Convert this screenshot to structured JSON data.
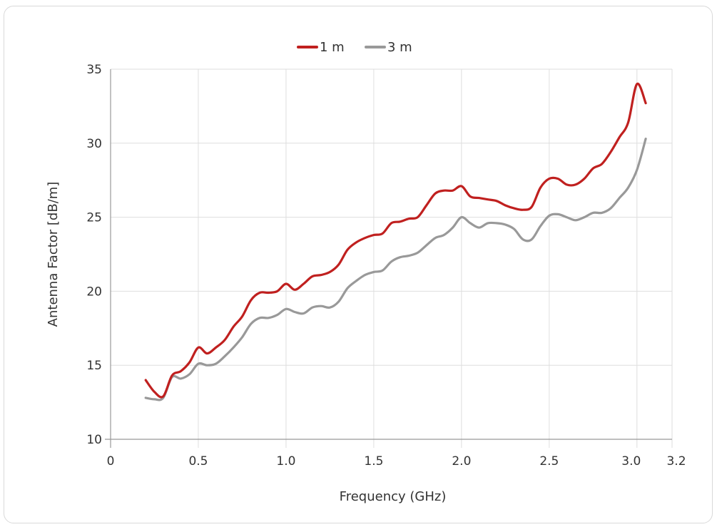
{
  "chart_data": {
    "type": "line",
    "xlabel": "Frequency (GHz)",
    "ylabel": "Antenna Factor [dB/m]",
    "xlim": [
      0,
      3.2
    ],
    "ylim": [
      10,
      35
    ],
    "x_ticks": [
      "0",
      "0.5",
      "1.0",
      "1.5",
      "2.0",
      "2.5",
      "3.0",
      "3.2"
    ],
    "y_ticks": [
      "10",
      "15",
      "20",
      "25",
      "30",
      "35"
    ],
    "grid": true,
    "legend_position": "top",
    "series": [
      {
        "name": "1 m",
        "color": "#c0201f",
        "x": [
          0.2,
          0.25,
          0.3,
          0.35,
          0.4,
          0.45,
          0.5,
          0.55,
          0.6,
          0.65,
          0.7,
          0.75,
          0.8,
          0.85,
          0.9,
          0.95,
          1.0,
          1.05,
          1.1,
          1.15,
          1.2,
          1.25,
          1.3,
          1.35,
          1.4,
          1.45,
          1.5,
          1.55,
          1.6,
          1.65,
          1.7,
          1.75,
          1.8,
          1.85,
          1.9,
          1.95,
          2.0,
          2.05,
          2.1,
          2.15,
          2.2,
          2.25,
          2.3,
          2.35,
          2.4,
          2.45,
          2.5,
          2.55,
          2.6,
          2.65,
          2.7,
          2.75,
          2.8,
          2.85,
          2.9,
          2.95,
          3.0,
          3.05
        ],
        "y": [
          14.0,
          13.2,
          12.9,
          14.3,
          14.6,
          15.2,
          16.2,
          15.8,
          16.2,
          16.7,
          17.6,
          18.3,
          19.4,
          19.9,
          19.9,
          20.0,
          20.5,
          20.1,
          20.5,
          21.0,
          21.1,
          21.3,
          21.8,
          22.8,
          23.3,
          23.6,
          23.8,
          23.9,
          24.6,
          24.7,
          24.9,
          25.0,
          25.8,
          26.6,
          26.8,
          26.8,
          27.1,
          26.4,
          26.3,
          26.2,
          26.1,
          25.8,
          25.6,
          25.5,
          25.7,
          27.0,
          27.6,
          27.6,
          27.2,
          27.2,
          27.6,
          28.3,
          28.6,
          29.4,
          30.4,
          31.4,
          34.0,
          32.7
        ]
      },
      {
        "name": "3 m",
        "color": "#999999",
        "x": [
          0.2,
          0.25,
          0.3,
          0.35,
          0.4,
          0.45,
          0.5,
          0.55,
          0.6,
          0.65,
          0.7,
          0.75,
          0.8,
          0.85,
          0.9,
          0.95,
          1.0,
          1.05,
          1.1,
          1.15,
          1.2,
          1.25,
          1.3,
          1.35,
          1.4,
          1.45,
          1.5,
          1.55,
          1.6,
          1.65,
          1.7,
          1.75,
          1.8,
          1.85,
          1.9,
          1.95,
          2.0,
          2.05,
          2.1,
          2.15,
          2.2,
          2.25,
          2.3,
          2.35,
          2.4,
          2.45,
          2.5,
          2.55,
          2.6,
          2.65,
          2.7,
          2.75,
          2.8,
          2.85,
          2.9,
          2.95,
          3.0,
          3.05
        ],
        "y": [
          12.8,
          12.7,
          12.8,
          14.2,
          14.1,
          14.4,
          15.1,
          15.0,
          15.1,
          15.6,
          16.2,
          16.9,
          17.8,
          18.2,
          18.2,
          18.4,
          18.8,
          18.6,
          18.5,
          18.9,
          19.0,
          18.9,
          19.3,
          20.2,
          20.7,
          21.1,
          21.3,
          21.4,
          22.0,
          22.3,
          22.4,
          22.6,
          23.1,
          23.6,
          23.8,
          24.3,
          25.0,
          24.6,
          24.3,
          24.6,
          24.6,
          24.5,
          24.2,
          23.5,
          23.5,
          24.4,
          25.1,
          25.2,
          25.0,
          24.8,
          25.0,
          25.3,
          25.3,
          25.6,
          26.3,
          27.0,
          28.2,
          30.3
        ]
      }
    ]
  }
}
